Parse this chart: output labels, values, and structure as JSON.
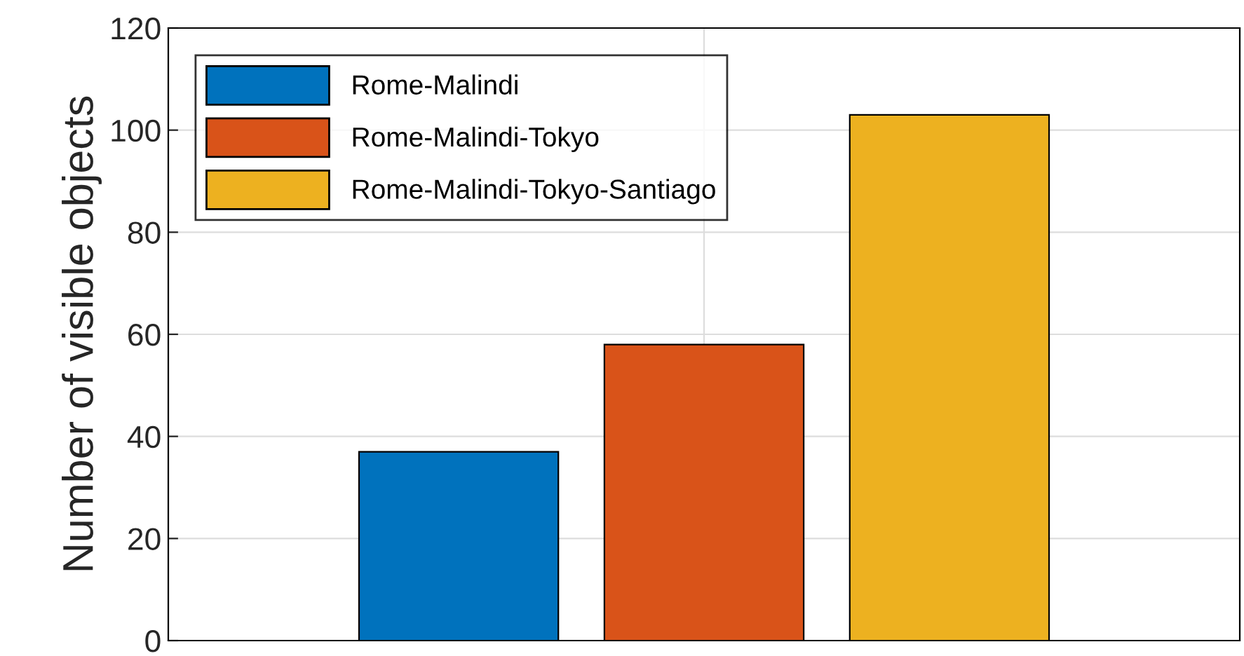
{
  "chart_data": {
    "type": "bar",
    "categories": [
      null
    ],
    "series": [
      {
        "name": "Rome-Malindi",
        "color": "#0072bd",
        "values": [
          37
        ]
      },
      {
        "name": "Rome-Malindi-Tokyo",
        "color": "#d95319",
        "values": [
          58
        ]
      },
      {
        "name": "Rome-Malindi-Tokyo-Santiago",
        "color": "#edb120",
        "values": [
          103
        ]
      }
    ],
    "ylabel": "Number of visible objects",
    "ylim": [
      0,
      120
    ],
    "yticks": [
      0,
      20,
      40,
      60,
      80,
      100,
      120
    ],
    "grid": true,
    "legend": "top left",
    "tick_labels": "y"
  }
}
